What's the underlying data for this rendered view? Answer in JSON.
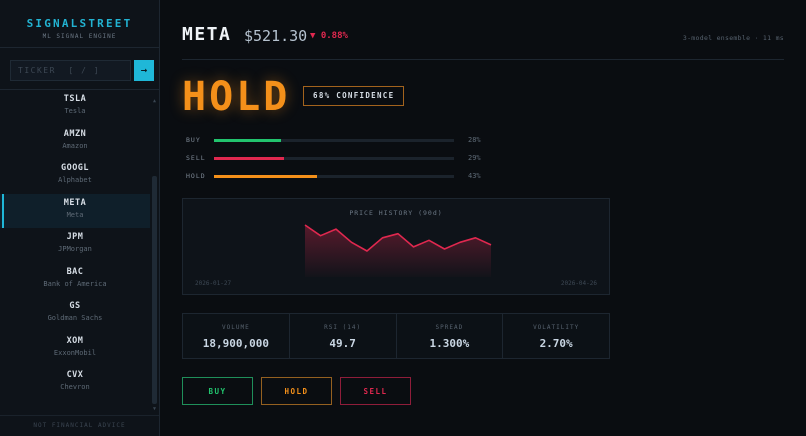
{
  "brand": {
    "title": "SIGNALSTREET",
    "subtitle": "ML SIGNAL ENGINE"
  },
  "search": {
    "placeholder": "TICKER  [ / ]",
    "value": "",
    "submit_icon": "arrow-right-icon",
    "submit_label": "→"
  },
  "sidebar": {
    "items": [
      {
        "symbol": "TSLA",
        "name": "Tesla",
        "active": false
      },
      {
        "symbol": "AMZN",
        "name": "Amazon",
        "active": false
      },
      {
        "symbol": "GOOGL",
        "name": "Alphabet",
        "active": false
      },
      {
        "symbol": "META",
        "name": "Meta",
        "active": true
      },
      {
        "symbol": "JPM",
        "name": "JPMorgan",
        "active": false
      },
      {
        "symbol": "BAC",
        "name": "Bank of America",
        "active": false
      },
      {
        "symbol": "GS",
        "name": "Goldman Sachs",
        "active": false
      },
      {
        "symbol": "XOM",
        "name": "ExxonMobil",
        "active": false
      },
      {
        "symbol": "CVX",
        "name": "Chevron",
        "active": false
      }
    ],
    "scroll_up": "▲",
    "scroll_down": "▼",
    "footer": "NOT FINANCIAL ADVICE"
  },
  "header": {
    "ticker": "META",
    "price": "$521.30",
    "change": "▼ 0.88%",
    "change_color": "#e0284f",
    "meta": "3-model ensemble · 11 ms"
  },
  "signal": {
    "label": "HOLD",
    "color": "#f4901a",
    "confidence": "68% CONFIDENCE"
  },
  "probabilities": [
    {
      "label": "BUY",
      "value": 28,
      "display": "28%",
      "color": "#22c46e"
    },
    {
      "label": "SELL",
      "value": 29,
      "display": "29%",
      "color": "#e0284f"
    },
    {
      "label": "HOLD",
      "value": 43,
      "display": "43%",
      "color": "#f4901a"
    }
  ],
  "chart": {
    "title": "PRICE HISTORY (90d)",
    "start_date": "2026-01-27",
    "end_date": "2026-04-26",
    "line_color": "#e0284f"
  },
  "chart_data": {
    "type": "area",
    "title": "PRICE HISTORY (90d)",
    "x": [
      "2026-01-27",
      "",
      "",
      "",
      "",
      "",
      "",
      "",
      "",
      "",
      "",
      "",
      "2026-04-26"
    ],
    "values": [
      100,
      79,
      92,
      66,
      49,
      75,
      83,
      57,
      70,
      53,
      66,
      75,
      61
    ],
    "value_note": "relative price level (no y-axis shown)",
    "xlabel": "",
    "ylabel": "",
    "grid": false,
    "legend": null
  },
  "stats": [
    {
      "label": "VOLUME",
      "value": "18,900,000"
    },
    {
      "label": "RSI (14)",
      "value": "49.7"
    },
    {
      "label": "SPREAD",
      "value": "1.300%"
    },
    {
      "label": "VOLATILITY",
      "value": "2.70%"
    }
  ],
  "actions": {
    "buy": "BUY",
    "hold": "HOLD",
    "sell": "SELL"
  }
}
